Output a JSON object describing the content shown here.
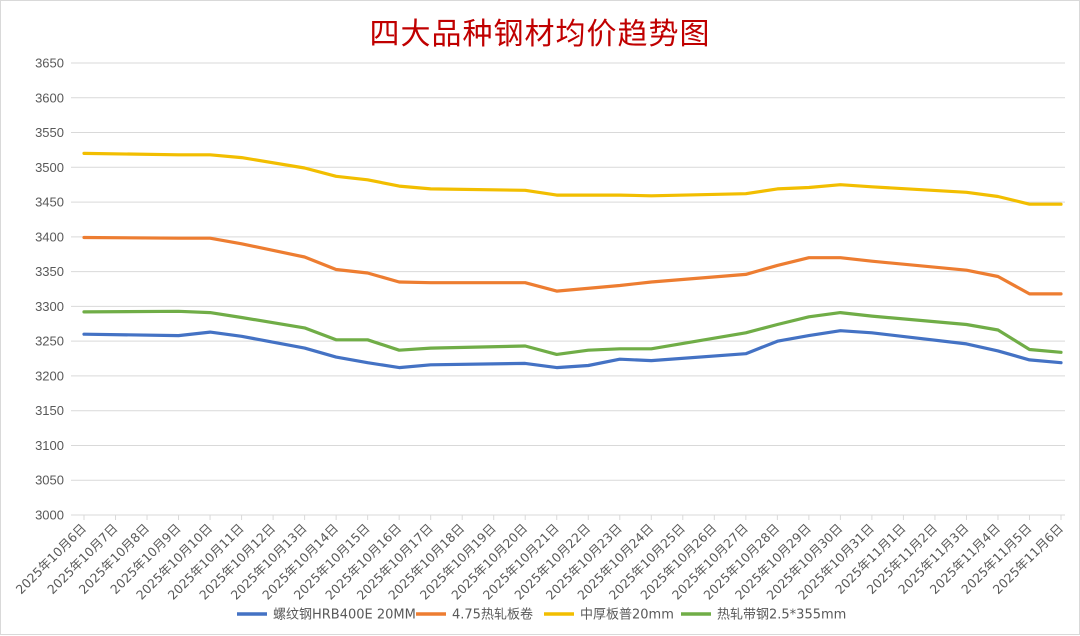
{
  "chart_data": {
    "type": "line",
    "title": "四大品种钢材均价趋势图",
    "xlabel": "",
    "ylabel": "",
    "ylim": [
      3000,
      3650
    ],
    "ystep": 50,
    "grid": true,
    "legend_position": "bottom",
    "categories": [
      "2025年10月6日",
      "2025年10月7日",
      "2025年10月8日",
      "2025年10月9日",
      "2025年10月10日",
      "2025年10月11日",
      "2025年10月12日",
      "2025年10月13日",
      "2025年10月14日",
      "2025年10月15日",
      "2025年10月16日",
      "2025年10月17日",
      "2025年10月18日",
      "2025年10月19日",
      "2025年10月20日",
      "2025年10月21日",
      "2025年10月22日",
      "2025年10月23日",
      "2025年10月24日",
      "2025年10月25日",
      "2025年10月26日",
      "2025年10月27日",
      "2025年10月28日",
      "2025年10月29日",
      "2025年10月30日",
      "2025年10月31日",
      "2025年11月1日",
      "2025年11月2日",
      "2025年11月3日",
      "2025年11月4日",
      "2025年11月5日",
      "2025年11月6日"
    ],
    "series": [
      {
        "name": "螺纹钢HRB400E 20MM",
        "color": "#4472c4",
        "points": [
          [
            0,
            3260
          ],
          [
            3,
            3258
          ],
          [
            4,
            3263
          ],
          [
            5,
            3257
          ],
          [
            7,
            3240
          ],
          [
            8,
            3227
          ],
          [
            9,
            3219
          ],
          [
            10,
            3212
          ],
          [
            11,
            3216
          ],
          [
            14,
            3218
          ],
          [
            15,
            3212
          ],
          [
            16,
            3215
          ],
          [
            17,
            3224
          ],
          [
            18,
            3222
          ],
          [
            21,
            3232
          ],
          [
            22,
            3250
          ],
          [
            23,
            3258
          ],
          [
            24,
            3265
          ],
          [
            25,
            3262
          ],
          [
            28,
            3246
          ],
          [
            29,
            3236
          ],
          [
            30,
            3223
          ],
          [
            31,
            3219
          ]
        ]
      },
      {
        "name": "4.75热轧板卷",
        "color": "#ed7d31",
        "points": [
          [
            0,
            3399
          ],
          [
            3,
            3398
          ],
          [
            4,
            3398
          ],
          [
            5,
            3390
          ],
          [
            7,
            3371
          ],
          [
            8,
            3353
          ],
          [
            9,
            3348
          ],
          [
            10,
            3335
          ],
          [
            11,
            3334
          ],
          [
            14,
            3334
          ],
          [
            15,
            3322
          ],
          [
            17,
            3330
          ],
          [
            18,
            3335
          ],
          [
            21,
            3346
          ],
          [
            22,
            3359
          ],
          [
            23,
            3370
          ],
          [
            24,
            3370
          ],
          [
            25,
            3365
          ],
          [
            28,
            3352
          ],
          [
            29,
            3343
          ],
          [
            30,
            3318
          ],
          [
            31,
            3318
          ]
        ]
      },
      {
        "name": "中厚板普20mm",
        "color": "#f2be00",
        "points": [
          [
            0,
            3520
          ],
          [
            3,
            3518
          ],
          [
            4,
            3518
          ],
          [
            5,
            3514
          ],
          [
            7,
            3499
          ],
          [
            8,
            3487
          ],
          [
            9,
            3482
          ],
          [
            10,
            3473
          ],
          [
            11,
            3469
          ],
          [
            14,
            3467
          ],
          [
            15,
            3460
          ],
          [
            17,
            3460
          ],
          [
            18,
            3459
          ],
          [
            21,
            3462
          ],
          [
            22,
            3469
          ],
          [
            23,
            3471
          ],
          [
            24,
            3475
          ],
          [
            25,
            3472
          ],
          [
            28,
            3464
          ],
          [
            29,
            3458
          ],
          [
            30,
            3447
          ],
          [
            31,
            3447
          ]
        ]
      },
      {
        "name": "热轧带钢2.5*355mm",
        "color": "#70ad47",
        "points": [
          [
            0,
            3292
          ],
          [
            3,
            3293
          ],
          [
            4,
            3291
          ],
          [
            5,
            3284
          ],
          [
            7,
            3269
          ],
          [
            8,
            3252
          ],
          [
            9,
            3252
          ],
          [
            10,
            3237
          ],
          [
            11,
            3240
          ],
          [
            14,
            3243
          ],
          [
            15,
            3231
          ],
          [
            16,
            3237
          ],
          [
            17,
            3239
          ],
          [
            18,
            3239
          ],
          [
            21,
            3262
          ],
          [
            22,
            3274
          ],
          [
            23,
            3285
          ],
          [
            24,
            3291
          ],
          [
            25,
            3286
          ],
          [
            28,
            3274
          ],
          [
            29,
            3266
          ],
          [
            30,
            3238
          ],
          [
            31,
            3234
          ]
        ]
      }
    ]
  }
}
